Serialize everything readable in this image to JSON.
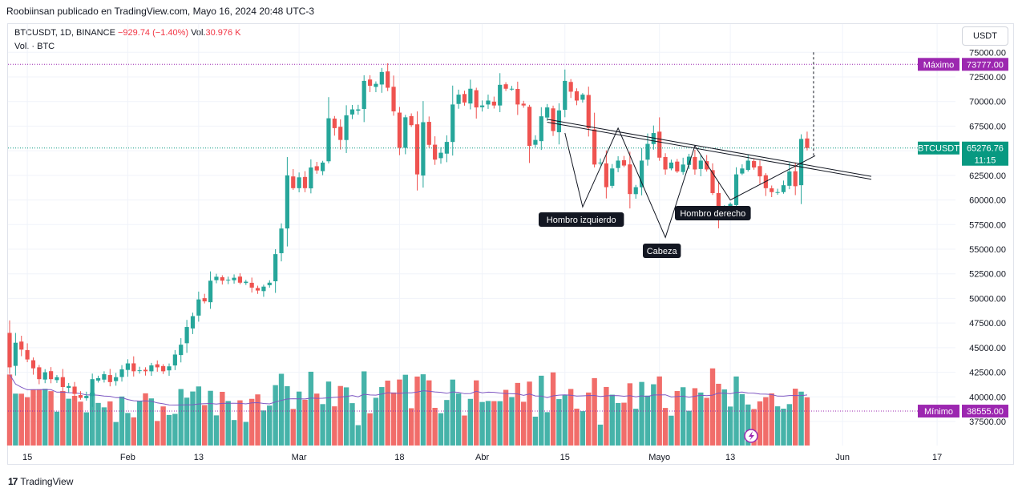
{
  "header": {
    "text": "Roobiinsan publicado en TradingView.com, Mayo 16, 2024 20:48 UTC-3"
  },
  "legend": {
    "symbol": "BTCUSDT, 1D, BINANCE",
    "change": "−929.74 (−1.40%)",
    "vol_label": "Vol.",
    "vol_value": "30.976 K",
    "vol_line": "Vol. · BTC"
  },
  "currency": "USDT",
  "footer": {
    "brand": "TradingView"
  },
  "colors": {
    "up": "#26a69a",
    "down": "#ef5350",
    "ma": "#7e57c2",
    "accent": "#9c27b0",
    "price_tag": "#089981"
  },
  "price_labels": {
    "max_name": "Máximo",
    "max_value": "73777.00",
    "last_name": "BTCUSDT",
    "last_value": "65276.76",
    "countdown": "11:15",
    "min_name": "Mínimo",
    "min_value": "38555.00"
  },
  "annotations": {
    "left_shoulder": "Hombro izquierdo",
    "head": "Cabeza",
    "right_shoulder": "Hombro derecho"
  },
  "chart_data": {
    "type": "candlestick",
    "title": "BTCUSDT, 1D, BINANCE",
    "y_ticks": [
      37500,
      40000,
      42500,
      45000,
      47500,
      50000,
      52500,
      55000,
      57500,
      60000,
      62500,
      65000,
      67500,
      70000,
      72500,
      75000
    ],
    "ylim": [
      36200,
      76400
    ],
    "x_ticks": [
      "15",
      "Feb",
      "13",
      "Mar",
      "18",
      "Abr",
      "15",
      "Mayo",
      "13",
      "Jun",
      "17"
    ],
    "dates": [
      "2024-01-15",
      "2024-02-01",
      "2024-02-13",
      "2024-03-01",
      "2024-03-18",
      "2024-04-01",
      "2024-04-15",
      "2024-05-01",
      "2024-05-13",
      "2024-06-01",
      "2024-06-17"
    ],
    "start_date": "2024-01-12",
    "max_price": 73777,
    "min_price": 38555,
    "last_price": 65276.76,
    "pattern": "Hombro-Cabeza-Hombro invertido",
    "ohlc_close": [
      43000,
      45500,
      44800,
      43800,
      42900,
      41800,
      42500,
      41800,
      42000,
      41000,
      41100,
      40300,
      39900,
      40100,
      41800,
      41900,
      42300,
      41500,
      42000,
      42800,
      43400,
      42600,
      42700,
      42600,
      43200,
      43000,
      42600,
      43100,
      44300,
      45300,
      47100,
      48200,
      49900,
      49700,
      51800,
      52200,
      51800,
      51900,
      52100,
      51600,
      51700,
      51100,
      50800,
      51200,
      51600,
      54500,
      57100,
      62500,
      61200,
      62300,
      61200,
      63300,
      63000,
      63800,
      68300,
      67300,
      66100,
      68600,
      69200,
      69200,
      72100,
      71600,
      71800,
      73000,
      71400,
      69000,
      65300,
      68400,
      67600,
      62600,
      67900,
      65600,
      64100,
      64800,
      65900,
      69700,
      70700,
      69900,
      71300,
      69400,
      69600,
      70100,
      69600,
      71700,
      71300,
      71300,
      69700,
      69600,
      65500,
      66100,
      68500,
      69400,
      67000,
      69100,
      72100,
      71000,
      70100,
      70700,
      67300,
      63600,
      63800,
      61300,
      63200,
      64000,
      63500,
      60600,
      61300,
      64000,
      65700,
      66800,
      64300,
      63100,
      63800,
      62900,
      63600,
      64400,
      63100,
      64000,
      63100,
      60700,
      58300,
      59000,
      59600,
      62600,
      63200,
      64000,
      63300,
      62400,
      61200,
      60800,
      60800,
      61500,
      62900,
      61400,
      66200,
      65277
    ],
    "volume_scale": [
      null
    ],
    "annotations": [
      "Hombro izquierdo",
      "Cabeza",
      "Hombro derecho"
    ]
  }
}
